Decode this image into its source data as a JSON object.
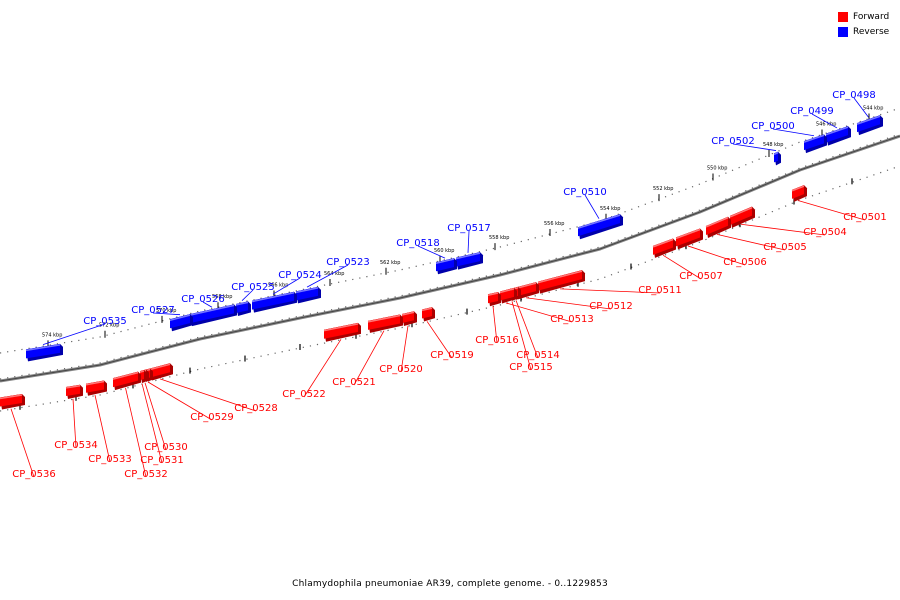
{
  "legend": {
    "forward_label": "Forward",
    "reverse_label": "Reverse",
    "forward_color": "#ff0000",
    "reverse_color": "#0000ff"
  },
  "caption": "Chlamydophila pneumoniae AR39, complete genome. - 0..1229853",
  "ticks": [
    "544 kbp",
    "546 kbp",
    "548 kbp",
    "550 kbp",
    "552 kbp",
    "554 kbp",
    "556 kbp",
    "558 kbp",
    "560 kbp",
    "562 kbp",
    "564 kbp",
    "566 kbp",
    "568 kbp",
    "570 kbp",
    "572 kbp",
    "574 kbp"
  ],
  "reverse_genes": [
    "CP_0498",
    "CP_0499",
    "CP_0500",
    "CP_0502",
    "CP_0510",
    "CP_0517",
    "CP_0518",
    "CP_0523",
    "CP_0524",
    "CP_0525",
    "CP_0526",
    "CP_0527",
    "CP_0535"
  ],
  "forward_genes": [
    "CP_0501",
    "CP_0504",
    "CP_0505",
    "CP_0506",
    "CP_0507",
    "CP_0511",
    "CP_0512",
    "CP_0513",
    "CP_0514",
    "CP_0515",
    "CP_0516",
    "CP_0519",
    "CP_0520",
    "CP_0521",
    "CP_0522",
    "CP_0528",
    "CP_0529",
    "CP_0530",
    "CP_0531",
    "CP_0532",
    "CP_0533",
    "CP_0534",
    "CP_0536"
  ]
}
